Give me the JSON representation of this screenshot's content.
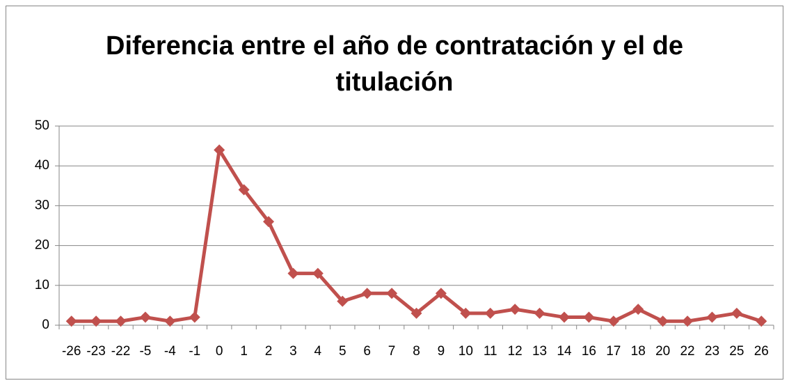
{
  "chart_data": {
    "type": "line",
    "title": "Diferencia entre el año de contratación y el de titulación",
    "categories": [
      "-26",
      "-23",
      "-22",
      "-5",
      "-4",
      "-1",
      "0",
      "1",
      "2",
      "3",
      "4",
      "5",
      "6",
      "7",
      "8",
      "9",
      "10",
      "11",
      "12",
      "13",
      "14",
      "16",
      "17",
      "18",
      "20",
      "22",
      "23",
      "25",
      "26"
    ],
    "series": [
      {
        "color": "#c0504d",
        "values": [
          1,
          1,
          1,
          2,
          1,
          2,
          44,
          34,
          26,
          13,
          13,
          6,
          8,
          8,
          3,
          8,
          3,
          3,
          4,
          3,
          2,
          2,
          1,
          4,
          1,
          1,
          2,
          3,
          1
        ]
      }
    ],
    "ylim": [
      0,
      50
    ],
    "yticks": [
      0,
      10,
      20,
      30,
      40,
      50
    ],
    "grid": true
  }
}
